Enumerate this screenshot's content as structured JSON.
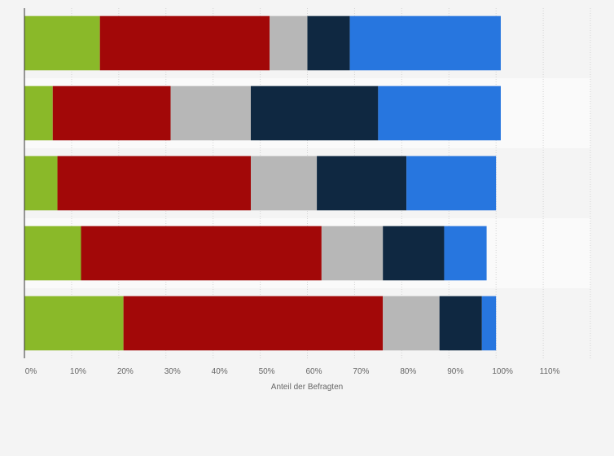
{
  "chart_data": {
    "type": "bar",
    "orientation": "horizontal",
    "stacked": true,
    "title": "",
    "xlabel": "Anteil der Befragten",
    "ylabel": "",
    "xlim": [
      0,
      120
    ],
    "xticks": [
      0,
      10,
      20,
      30,
      40,
      50,
      60,
      70,
      80,
      90,
      100,
      110
    ],
    "xtick_labels": [
      "0%",
      "10%",
      "20%",
      "30%",
      "40%",
      "50%",
      "60%",
      "70%",
      "80%",
      "90%",
      "100%",
      "110%"
    ],
    "grid": true,
    "categories": [
      "",
      "",
      "",
      "",
      ""
    ],
    "series": [
      {
        "color": "#8ab929",
        "values": [
          16,
          6,
          7,
          12,
          21
        ]
      },
      {
        "color": "#a20808",
        "values": [
          36,
          25,
          41,
          51,
          55
        ]
      },
      {
        "color": "#b7b7b7",
        "values": [
          8,
          17,
          14,
          13,
          12
        ]
      },
      {
        "color": "#0f2841",
        "values": [
          9,
          27,
          19,
          13,
          9
        ]
      },
      {
        "color": "#2776df",
        "values": [
          32,
          26,
          19,
          9,
          3
        ]
      }
    ],
    "row_band_colors": [
      "#f4f4f4",
      "#fafafa"
    ],
    "grid_color": "#d4d4d4",
    "axis_color": "#333333"
  }
}
